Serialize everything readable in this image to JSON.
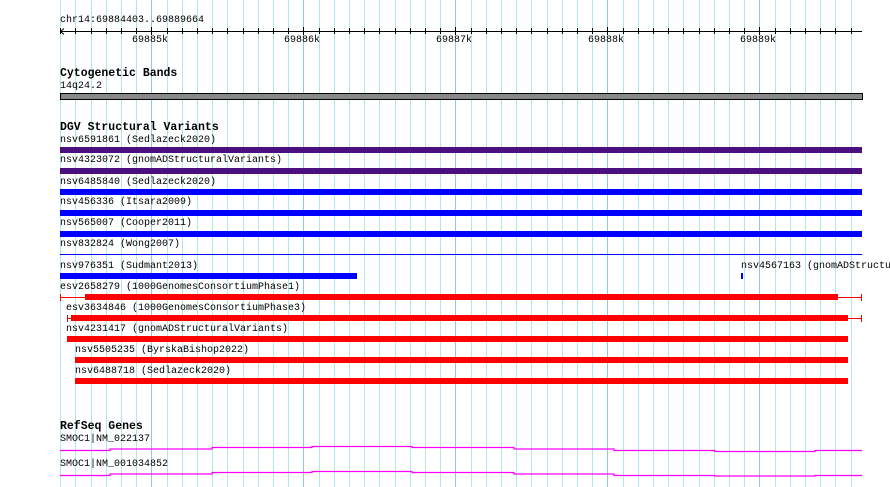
{
  "ruler": {
    "location": "chr14:69884403..69889664",
    "ticks": [
      "69885k",
      "69886k",
      "69887k",
      "69888k",
      "69889k"
    ]
  },
  "tracks": {
    "cyto": {
      "title": "Cytogenetic Bands",
      "band": "14q24.2"
    },
    "dgv": {
      "title": "DGV Structural Variants",
      "features": [
        "nsv6591861 (Sedlazeck2020)",
        "nsv4323072 (gnomADStructuralVariants)",
        "nsv6485840 (Sedlazeck2020)",
        "nsv456336 (Itsara2009)",
        "nsv565007 (Cooper2011)",
        "nsv832824 (Wong2007)",
        "nsv976351 (Sudmant2013)",
        "nsv4567163 (gnomADStructu",
        "esv2658279 (1000GenomesConsortiumPhase1)",
        "esv3634846 (1000GenomesConsortiumPhase3)",
        "nsv4231417 (gnomADStructuralVariants)",
        "nsv5505235 (ByrskaBishop2022)",
        "nsv6488718 (Sedlazeck2020)"
      ]
    },
    "refseq": {
      "title": "RefSeq Genes",
      "genes": [
        "SMOC1|NM_022137",
        "SMOC1|NM_001034852"
      ]
    }
  },
  "colors": {
    "grid_minor": "#aee8ee",
    "grid_major": "#8ec8e8",
    "purple": "#4b0f7f",
    "blue": "#0000ff",
    "red": "#ff0000",
    "gene": "#ff00ff",
    "band": "#888888"
  }
}
